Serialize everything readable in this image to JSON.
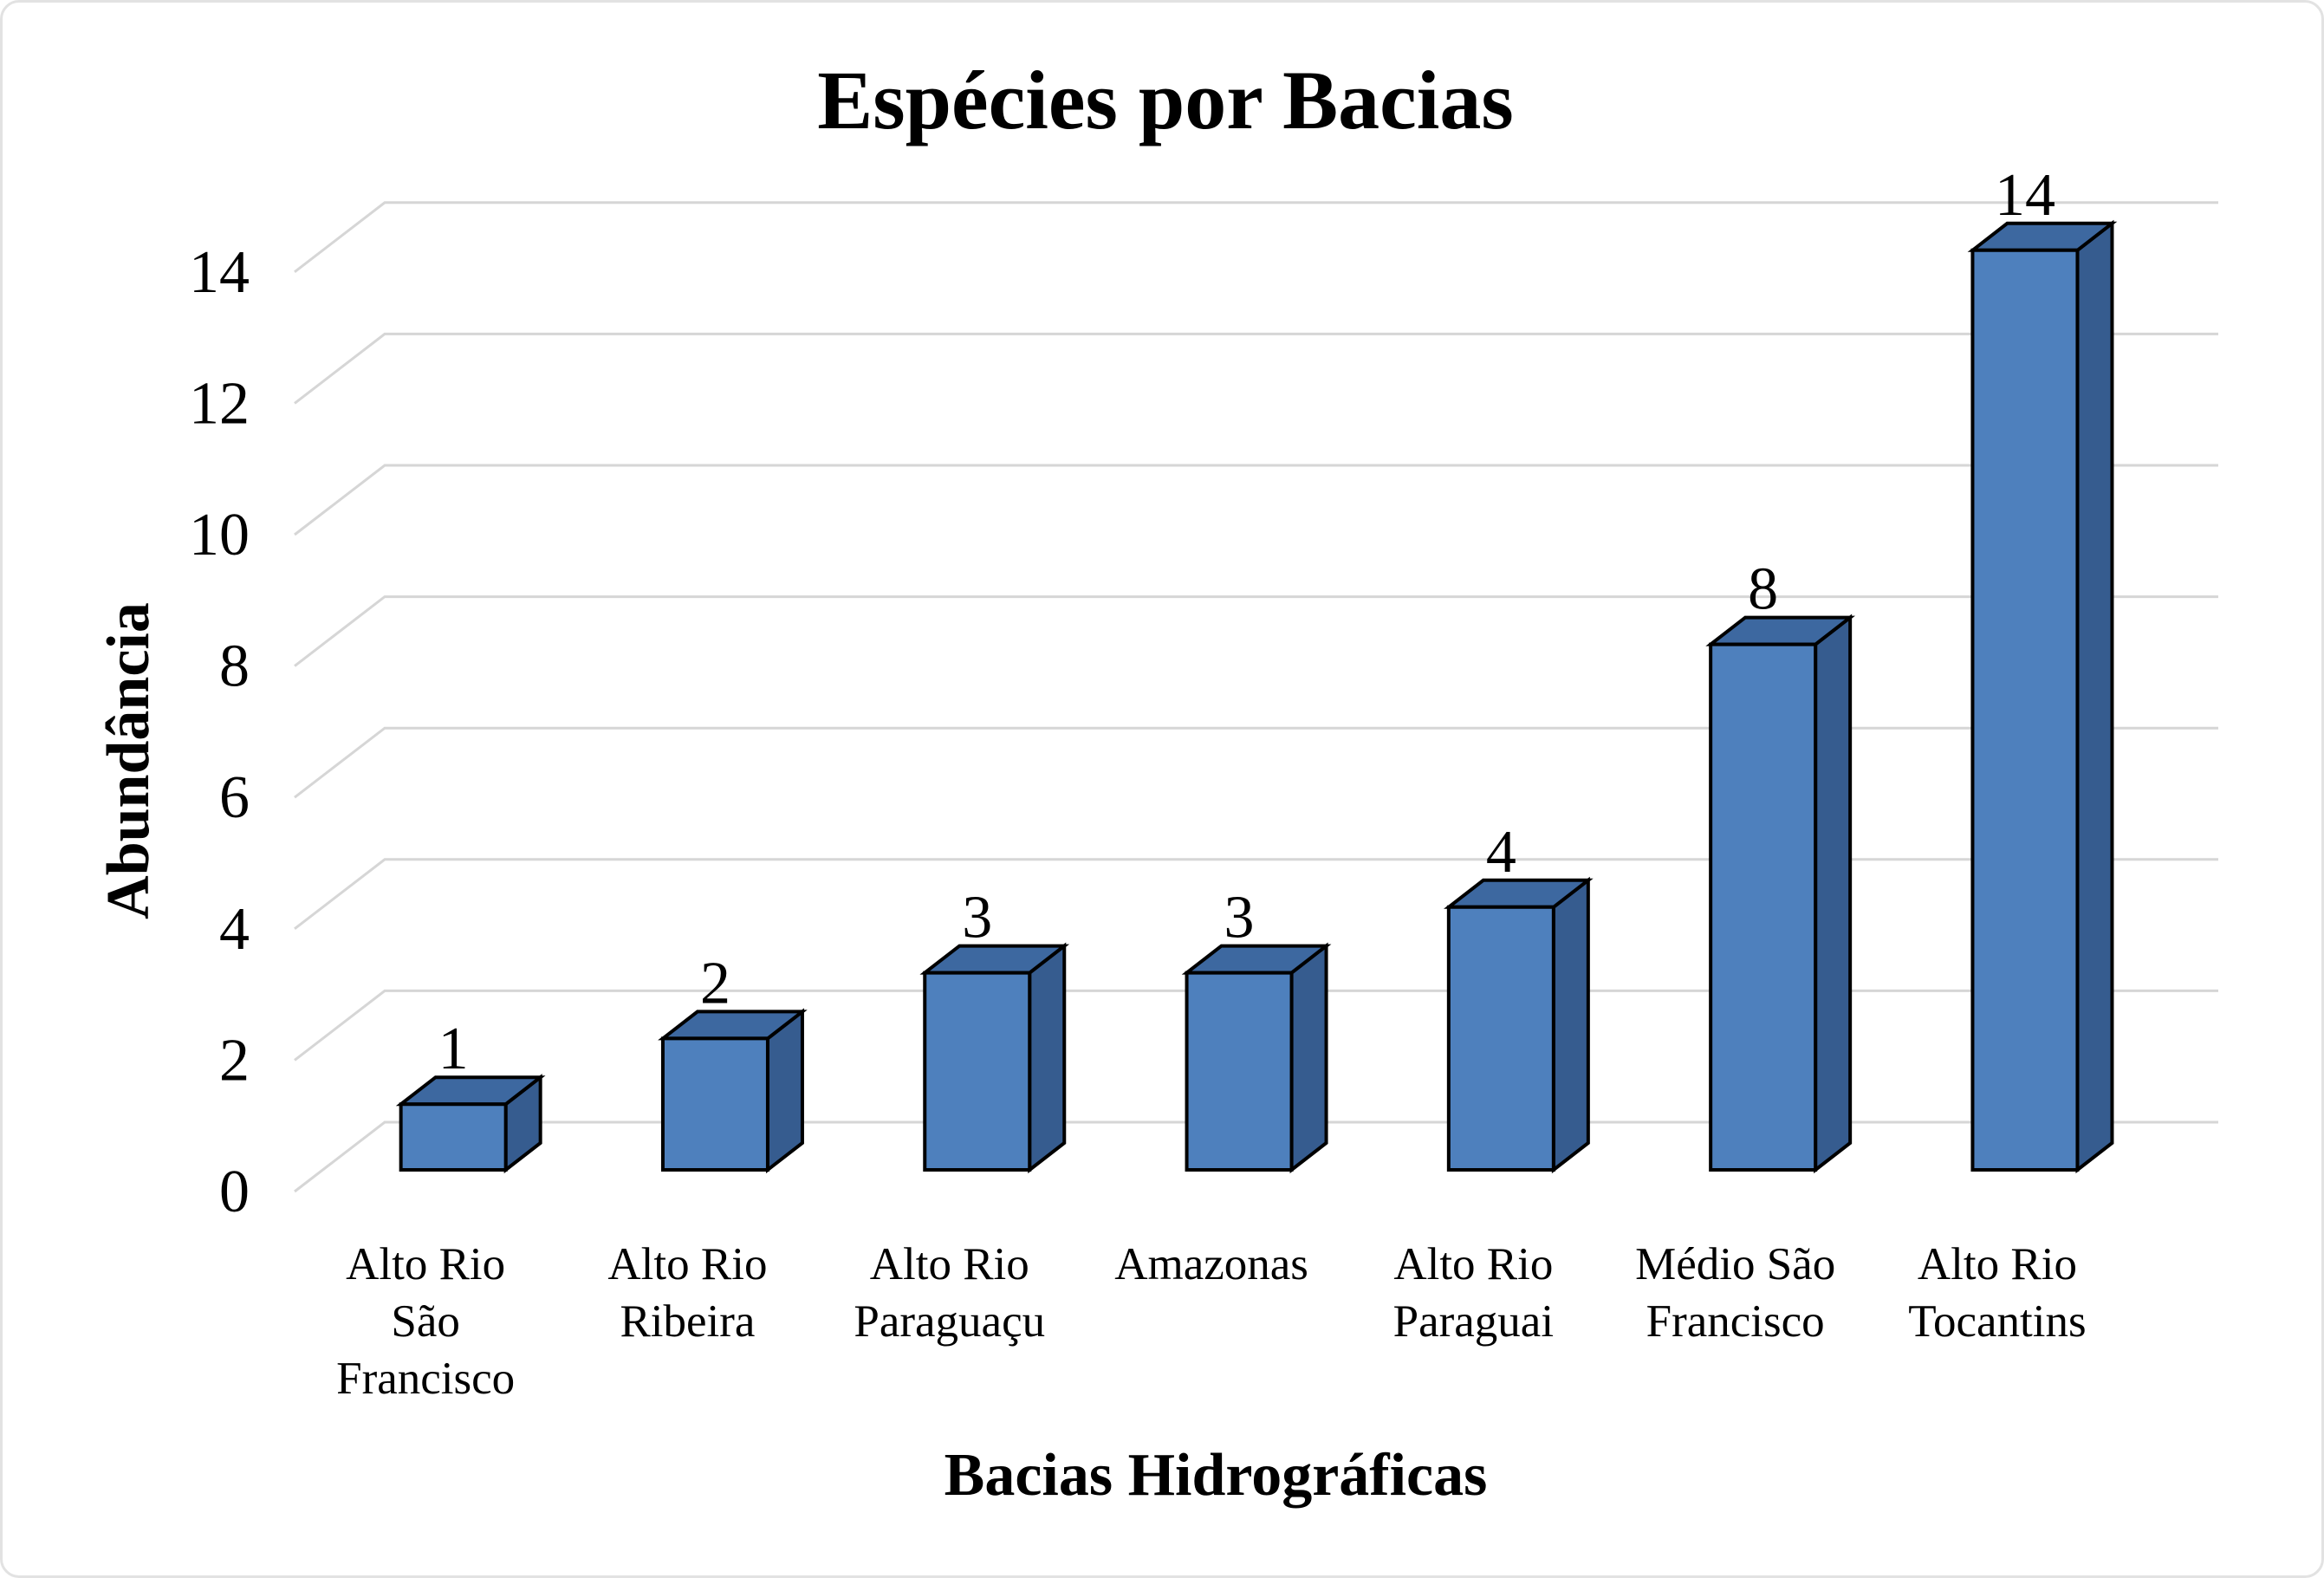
{
  "frame": {
    "background": "#ffffff",
    "border_color": "#e2e2e2"
  },
  "chart_data": {
    "type": "bar",
    "is_3d": true,
    "title": "Espécies por Bacias",
    "xlabel": "Bacias Hidrográficas",
    "ylabel": "Abundância",
    "categories": [
      "Alto Rio São Francisco",
      "Alto Rio Ribeira",
      "Alto Rio Paraguaçu",
      "Amazonas",
      "Alto Rio Paraguai",
      "Médio São Francisco",
      "Alto Rio Tocantins"
    ],
    "category_lines": [
      [
        "Alto Rio",
        "São",
        "Francisco"
      ],
      [
        "Alto Rio",
        "Ribeira"
      ],
      [
        "Alto Rio",
        "Paraguaçu"
      ],
      [
        "Amazonas"
      ],
      [
        "Alto Rio",
        "Paraguai"
      ],
      [
        "Médio São",
        "Francisco"
      ],
      [
        "Alto Rio",
        "Tocantins"
      ]
    ],
    "values": [
      1,
      2,
      3,
      3,
      4,
      8,
      14
    ],
    "data_labels": [
      "1",
      "2",
      "3",
      "3",
      "4",
      "8",
      "14"
    ],
    "y_ticks": [
      0,
      2,
      4,
      6,
      8,
      10,
      12,
      14
    ],
    "ylim": [
      0,
      14
    ],
    "grid": true,
    "legend": false,
    "colors": {
      "bar_front": "#4E80BD",
      "bar_top": "#3D68A0",
      "bar_side": "#365C8F",
      "bar_outline": "#000000",
      "gridline": "#D6D6D6",
      "text": "#000000"
    }
  }
}
